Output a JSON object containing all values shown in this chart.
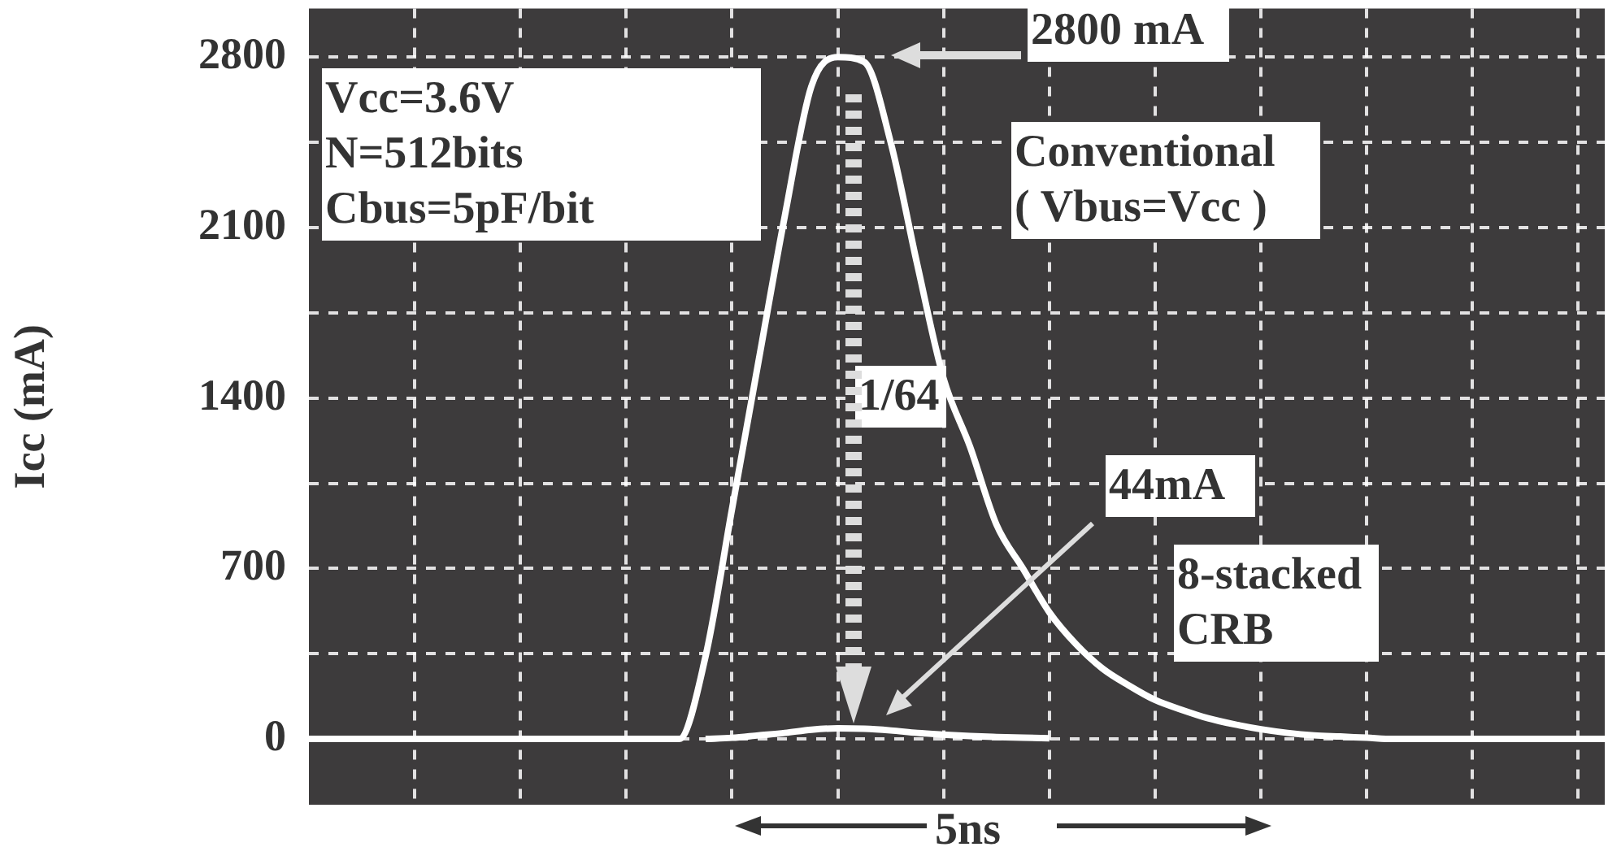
{
  "chart_data": {
    "type": "line",
    "ylabel": "Icc (mA)",
    "categories": [
      null,
      null,
      null,
      null,
      null,
      null,
      null,
      null,
      null,
      null,
      null,
      null,
      null,
      null,
      null,
      null,
      null,
      null,
      null,
      null,
      null,
      null,
      null,
      null,
      null,
      null,
      null,
      null,
      null,
      null,
      null,
      null,
      null,
      null,
      null,
      null,
      null,
      null,
      null,
      null,
      null,
      null,
      null,
      null,
      null,
      null,
      null,
      null,
      null,
      null
    ],
    "series": [
      {
        "color": "#ffffff",
        "values": [
          0,
          0,
          0,
          0,
          0,
          0,
          0,
          0,
          0,
          0,
          0,
          0,
          0,
          0,
          0,
          340,
          945,
          1550,
          2150,
          2680,
          2800,
          2780,
          2450,
          1950,
          1480,
          1200,
          880,
          700,
          520,
          390,
          290,
          220,
          160,
          120,
          85,
          60,
          40,
          25,
          15,
          10,
          5,
          0,
          0,
          0,
          0,
          0,
          0,
          0,
          0,
          0
        ]
      },
      {
        "color": "#ffffff",
        "values": [
          null,
          null,
          null,
          null,
          null,
          null,
          null,
          null,
          null,
          null,
          null,
          null,
          null,
          null,
          null,
          0,
          5,
          15,
          25,
          38,
          44,
          42,
          35,
          25,
          18,
          12,
          8,
          5,
          3,
          null,
          null,
          null,
          null,
          null,
          null,
          null,
          null,
          null,
          null,
          null,
          null,
          null,
          null,
          null,
          null,
          null,
          null,
          null,
          null,
          null
        ]
      }
    ],
    "ylim": [
      -270,
      3000
    ],
    "yticks": [
      0,
      {
        "value": 350,
        "label": null
      },
      700,
      {
        "value": 1050,
        "label": null
      },
      1400,
      {
        "value": 1750,
        "label": null
      },
      2100,
      {
        "value": 2450,
        "label": null
      },
      2800
    ],
    "grid": true,
    "tick_labels": "y",
    "marker": "none",
    "line_style": "solid",
    "annotations": [
      "Vcc=3.6V",
      "N=512bits",
      "Cbus=5pF/bit",
      "2800 mA",
      "Conventional",
      "( Vbus=Vcc )",
      "1/64",
      "44mA",
      "8-stacked",
      "CRB",
      "5ns"
    ]
  }
}
